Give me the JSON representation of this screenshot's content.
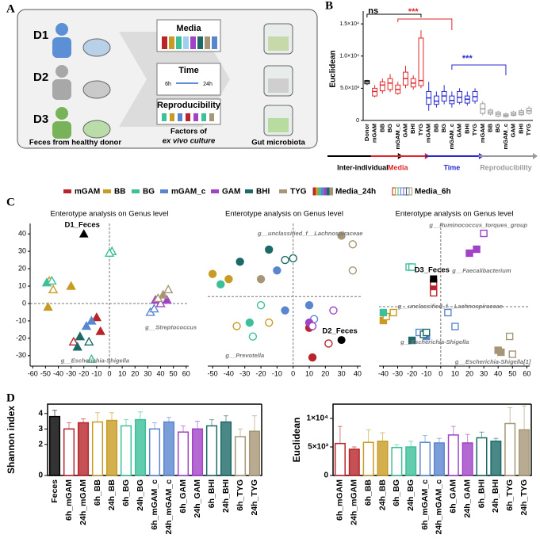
{
  "panel_labels": [
    "A",
    "B",
    "C",
    "D"
  ],
  "diagram": {
    "donors": [
      "D1",
      "D2",
      "D3"
    ],
    "factors": [
      "Media",
      "Time",
      "Reproducibility"
    ],
    "time_start": "6h",
    "time_end": "24h",
    "caption_left": "Feces from healthy donor",
    "caption_middle": [
      "Factors of",
      "ex vivo culture"
    ],
    "caption_right": "Gut microbiota"
  },
  "legend": {
    "items": [
      {
        "name": "mGAM",
        "color": "#b8252b"
      },
      {
        "name": "BB",
        "color": "#c89b22"
      },
      {
        "name": "BG",
        "color": "#3dbf9a"
      },
      {
        "name": "mGAM_c",
        "color": "#5a86d0"
      },
      {
        "name": "GAM",
        "color": "#a043c6"
      },
      {
        "name": "BHI",
        "color": "#1c6a68"
      },
      {
        "name": "TYG",
        "color": "#a69676"
      }
    ],
    "filled_label": "Media_24h",
    "hollow_label": "Media_6h"
  },
  "chart_data": [
    {
      "type": "box",
      "ylabel": "Euclidean",
      "ylim": [
        0,
        16000
      ],
      "yticks": [
        0,
        {
          "value": 5000,
          "label": "5.0×10³"
        },
        {
          "value": 10000,
          "label": "1.0×10⁴"
        },
        {
          "value": 15000,
          "label": "1.5×10⁴"
        }
      ],
      "annotations": [
        {
          "text": "ns",
          "color": "#000000"
        },
        {
          "text": "***",
          "color": "#e0262a"
        },
        {
          "text": "***",
          "color": "#2a2ad0"
        }
      ],
      "series": [
        {
          "name": "Inter-individual",
          "color": "#000000",
          "categories": [
            "Donor"
          ],
          "min": [
            5500
          ],
          "q1": [
            5700
          ],
          "median": [
            6000
          ],
          "q3": [
            6200
          ],
          "max": [
            6300
          ]
        },
        {
          "name": "Media",
          "color": "#e0262a",
          "categories": [
            "mGAM",
            "BB",
            "BG",
            "mGAM_c",
            "GAM",
            "BHI",
            "TYG"
          ],
          "min": [
            3600,
            4200,
            4400,
            4000,
            5000,
            4800,
            5000
          ],
          "q1": [
            3800,
            4600,
            4800,
            4200,
            5500,
            5200,
            5400
          ],
          "median": [
            4500,
            5500,
            5800,
            4800,
            6500,
            5800,
            6200
          ],
          "q3": [
            5000,
            6000,
            6500,
            5500,
            7500,
            6500,
            12800
          ],
          "max": [
            5500,
            6500,
            7200,
            6000,
            8500,
            7000,
            14000
          ]
        },
        {
          "name": "Time",
          "color": "#2a2ad0",
          "categories": [
            "mGAM",
            "BB",
            "BG",
            "mGAM_c",
            "GAM",
            "BHI",
            "TYG"
          ],
          "min": [
            1500,
            2000,
            2500,
            2000,
            2500,
            2300,
            2600
          ],
          "q1": [
            2500,
            2500,
            3000,
            2600,
            2800,
            2700,
            3000
          ],
          "median": [
            3500,
            3000,
            3800,
            3100,
            3600,
            3300,
            3700
          ],
          "q3": [
            4500,
            3800,
            4500,
            3800,
            4500,
            3800,
            4500
          ],
          "max": [
            6000,
            4500,
            5500,
            4500,
            5000,
            4500,
            5000
          ]
        },
        {
          "name": "Reproducibility",
          "color": "#9a9a9a",
          "categories": [
            "mGAM",
            "BB",
            "BG",
            "mGAM_c",
            "GAM",
            "BHI",
            "TYG"
          ],
          "min": [
            800,
            800,
            500,
            400,
            600,
            700,
            900
          ],
          "q1": [
            1100,
            1000,
            700,
            600,
            800,
            900,
            1100
          ],
          "median": [
            1800,
            1300,
            1000,
            800,
            1000,
            1200,
            1500
          ],
          "q3": [
            2600,
            1600,
            1300,
            1000,
            1300,
            1500,
            1900
          ],
          "max": [
            3000,
            1800,
            1500,
            1200,
            1500,
            1800,
            2200
          ]
        }
      ]
    },
    {
      "type": "scatter",
      "title": "Enterotype analysis on Genus level",
      "marker": "triangle",
      "xlim": [
        -62,
        62
      ],
      "ylim": [
        -36,
        46
      ],
      "xticks": [
        -60,
        -50,
        -40,
        -30,
        -20,
        -10,
        0,
        10,
        20,
        30,
        40,
        50,
        60
      ],
      "yticks": [
        -30,
        -20,
        -10,
        0,
        10,
        20,
        30,
        40
      ],
      "reference_point": {
        "label": "D1_Feces",
        "x": -20,
        "y": 40
      },
      "annotations": [
        "g__Escherichia-Shigella",
        "g__Streptococcus"
      ],
      "series": [
        {
          "name": "mGAM",
          "color": "#b8252b",
          "x": [
            -10,
            -7,
            -28
          ],
          "y": [
            -8,
            -16,
            -22
          ],
          "hollow": [
            false,
            false,
            true
          ]
        },
        {
          "name": "BB",
          "color": "#c89b22",
          "x": [
            -48,
            -47,
            -30,
            -44
          ],
          "y": [
            -2,
            13,
            10,
            8
          ],
          "hollow": [
            false,
            true,
            false,
            true
          ]
        },
        {
          "name": "BG",
          "color": "#3dbf9a",
          "x": [
            -49,
            -45,
            2,
            0,
            -14
          ],
          "y": [
            12,
            13,
            30,
            29,
            -32
          ],
          "hollow": [
            false,
            true,
            true,
            true,
            true
          ]
        },
        {
          "name": "mGAM_c",
          "color": "#5a86d0",
          "x": [
            -18,
            -14,
            32,
            35
          ],
          "y": [
            -13,
            -10,
            -5,
            -3
          ],
          "hollow": [
            false,
            false,
            true,
            true
          ]
        },
        {
          "name": "GAM",
          "color": "#a043c6",
          "x": [
            36,
            40,
            45
          ],
          "y": [
            2,
            0,
            2
          ],
          "hollow": [
            false,
            true,
            false
          ]
        },
        {
          "name": "BHI",
          "color": "#1c6a68",
          "x": [
            -25,
            -16,
            -23
          ],
          "y": [
            -25,
            -22,
            -19
          ],
          "hollow": [
            false,
            true,
            false
          ]
        },
        {
          "name": "TYG",
          "color": "#a69676",
          "x": [
            46,
            42,
            38
          ],
          "y": [
            8,
            5,
            3
          ],
          "hollow": [
            true,
            false,
            true
          ]
        }
      ]
    },
    {
      "type": "scatter",
      "title": "Enterotype analysis on Genus level",
      "marker": "circle",
      "xlim": [
        -53,
        42
      ],
      "ylim": [
        -40,
        42
      ],
      "xticks": [
        -50,
        -40,
        -30,
        -20,
        -10,
        0,
        10,
        20,
        30,
        40
      ],
      "reference_point": {
        "label": "D2_Feces",
        "x": 30,
        "y": -25
      },
      "annotations": [
        "g__unclassified_f__Lachnospiraceae",
        "g__Prevotella"
      ],
      "series": [
        {
          "name": "mGAM",
          "color": "#b8252b",
          "x": [
            10,
            12,
            22
          ],
          "y": [
            -18,
            -35,
            -27
          ],
          "hollow": [
            false,
            false,
            true
          ]
        },
        {
          "name": "BB",
          "color": "#c89b22",
          "x": [
            -50,
            -40,
            -15,
            -35
          ],
          "y": [
            13,
            10,
            -15,
            -17
          ],
          "hollow": [
            false,
            false,
            true,
            true
          ]
        },
        {
          "name": "BG",
          "color": "#3dbf9a",
          "x": [
            -45,
            -20,
            -25,
            -27
          ],
          "y": [
            7,
            -5,
            -23,
            -15
          ],
          "hollow": [
            false,
            true,
            true,
            false
          ]
        },
        {
          "name": "mGAM_c",
          "color": "#5a86d0",
          "x": [
            -10,
            -5,
            13,
            10
          ],
          "y": [
            15,
            -8,
            -13,
            -5
          ],
          "hollow": [
            false,
            false,
            true,
            false
          ]
        },
        {
          "name": "GAM",
          "color": "#a043c6",
          "x": [
            10,
            12,
            25
          ],
          "y": [
            -15,
            -17,
            -8
          ],
          "hollow": [
            false,
            true,
            true
          ]
        },
        {
          "name": "BHI",
          "color": "#1c6a68",
          "x": [
            -15,
            -5,
            0,
            -33
          ],
          "y": [
            27,
            21,
            22,
            20
          ],
          "hollow": [
            false,
            true,
            true,
            false
          ]
        },
        {
          "name": "TYG",
          "color": "#a69676",
          "x": [
            30,
            37,
            37,
            -20
          ],
          "y": [
            35,
            30,
            15,
            10
          ],
          "hollow": [
            false,
            true,
            true,
            false
          ]
        }
      ]
    },
    {
      "type": "scatter",
      "title": "Enterotype analysis on Genus level",
      "marker": "square",
      "xlim": [
        -43,
        62
      ],
      "ylim": [
        -30,
        42
      ],
      "xticks": [
        -40,
        -30,
        -20,
        -10,
        0,
        10,
        20,
        30,
        40,
        50,
        60
      ],
      "reference_point": {
        "label": "D3_Feces",
        "x": -5,
        "y": 14
      },
      "annotations": [
        "g__Ruminococcus_torques_group",
        "g__Faecalibacterium",
        "g__unclassified_f__Lachnospiraceae",
        "g__Escherichia-Shigella",
        "g__Escherichia-Shigella[1]"
      ],
      "series": [
        {
          "name": "mGAM",
          "color": "#b8252b",
          "x": [
            -5,
            -5,
            -5
          ],
          "y": [
            9,
            12,
            7
          ],
          "hollow": [
            false,
            true,
            true
          ]
        },
        {
          "name": "BB",
          "color": "#c89b22",
          "x": [
            -40,
            -38,
            -33
          ],
          "y": [
            -7,
            -5,
            -3
          ],
          "hollow": [
            false,
            true,
            true
          ]
        },
        {
          "name": "BG",
          "color": "#3dbf9a",
          "x": [
            -22,
            -20,
            -40
          ],
          "y": [
            20,
            20,
            -3
          ],
          "hollow": [
            true,
            true,
            false
          ]
        },
        {
          "name": "mGAM_c",
          "color": "#5a86d0",
          "x": [
            -15,
            -10,
            5,
            10
          ],
          "y": [
            -13,
            -15,
            -3,
            -10
          ],
          "hollow": [
            true,
            false,
            true,
            true
          ]
        },
        {
          "name": "GAM",
          "color": "#a043c6",
          "x": [
            20,
            25,
            30
          ],
          "y": [
            27,
            29,
            37
          ],
          "hollow": [
            false,
            false,
            true
          ]
        },
        {
          "name": "BHI",
          "color": "#1c6a68",
          "x": [
            -20,
            -12,
            -10
          ],
          "y": [
            -17,
            -14,
            -13
          ],
          "hollow": [
            false,
            true,
            true
          ]
        },
        {
          "name": "TYG",
          "color": "#a69676",
          "x": [
            40,
            42,
            48,
            50
          ],
          "y": [
            -22,
            -23,
            -15,
            -24
          ],
          "hollow": [
            false,
            false,
            true,
            true
          ]
        }
      ]
    },
    {
      "type": "bar",
      "ylabel": "Shannon index",
      "ylim": [
        0,
        4.6
      ],
      "yticks": [
        0,
        2,
        3,
        4
      ],
      "categories": [
        "Feces",
        "6h_mGAM",
        "24h_mGAM",
        "6h_BB",
        "24h_BB",
        "6h_BG",
        "24h_BG",
        "6h_mGAM_c",
        "24h_mGAM_c",
        "6h_GAM",
        "24h_GAM",
        "6h_BHI",
        "24h_BHI",
        "6h_TYG",
        "24h_TYG"
      ],
      "values": [
        3.8,
        3.0,
        3.4,
        3.45,
        3.55,
        3.2,
        3.6,
        3.0,
        3.45,
        2.8,
        3.0,
        3.2,
        3.45,
        2.5,
        2.85
      ],
      "errors": [
        0.4,
        0.4,
        0.25,
        0.6,
        0.5,
        0.4,
        0.5,
        0.4,
        0.3,
        0.4,
        0.5,
        0.4,
        0.4,
        0.5,
        1.0
      ],
      "colors": [
        "#000000",
        "#b8252b",
        "#b8252b",
        "#c89b22",
        "#c89b22",
        "#3dbf9a",
        "#3dbf9a",
        "#5a86d0",
        "#5a86d0",
        "#a043c6",
        "#a043c6",
        "#1c6a68",
        "#1c6a68",
        "#a69676",
        "#a69676"
      ],
      "hollow": [
        false,
        true,
        false,
        true,
        false,
        true,
        false,
        true,
        false,
        true,
        false,
        true,
        false,
        true,
        false
      ]
    },
    {
      "type": "bar",
      "ylabel": "Euclidean",
      "ylim": [
        0,
        12500
      ],
      "yticks": [
        0,
        {
          "value": 5000,
          "label": "5×10³"
        },
        {
          "value": 10000,
          "label": "1×10⁴"
        }
      ],
      "categories": [
        "6h_mGAM",
        "24h_mGAM",
        "6h_BB",
        "24h_BB",
        "6h_BG",
        "24h_BG",
        "6h_mGAM_c",
        "24h_mGAM_c",
        "6h_GAM",
        "24h_GAM",
        "6h_BHI",
        "24h_BHI",
        "6h_TYG",
        "24h_TYG"
      ],
      "values": [
        5600,
        4600,
        5800,
        6000,
        4900,
        5000,
        5800,
        5700,
        7100,
        5700,
        6600,
        6000,
        9100,
        8000
      ],
      "errors": [
        3000,
        400,
        2200,
        1500,
        500,
        1000,
        1200,
        800,
        1500,
        1500,
        1000,
        500,
        2800,
        4200
      ],
      "colors": [
        "#b8252b",
        "#b8252b",
        "#c89b22",
        "#c89b22",
        "#3dbf9a",
        "#3dbf9a",
        "#5a86d0",
        "#5a86d0",
        "#a043c6",
        "#a043c6",
        "#1c6a68",
        "#1c6a68",
        "#a69676",
        "#a69676"
      ],
      "hollow": [
        true,
        false,
        true,
        false,
        true,
        false,
        true,
        false,
        true,
        false,
        true,
        false,
        true,
        false
      ]
    }
  ]
}
